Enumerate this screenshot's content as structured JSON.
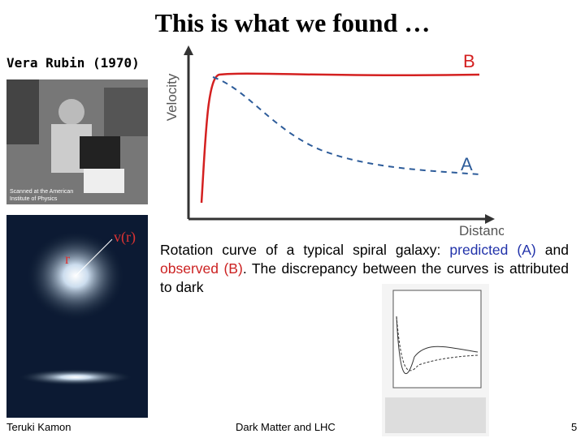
{
  "slide": {
    "title": "This is what we found …",
    "photo_caption": "Vera Rubin (1970)",
    "diagram": {
      "y_label": "Velocity",
      "x_label": "Distance",
      "curve_b": "B",
      "curve_a": "A"
    },
    "galaxy_labels": {
      "velocity": "v(r)",
      "radius": "r"
    },
    "caption": {
      "part1": "Rotation curve of a typical spiral galaxy: ",
      "predicted": "predicted (A)",
      "part2": " and ",
      "observed": "observed (B)",
      "part3": ". The discrepancy between the curves is attributed to dark"
    },
    "footer": {
      "author": "Teruki Kamon",
      "topic": "Dark Matter and LHC",
      "page": "5"
    }
  }
}
